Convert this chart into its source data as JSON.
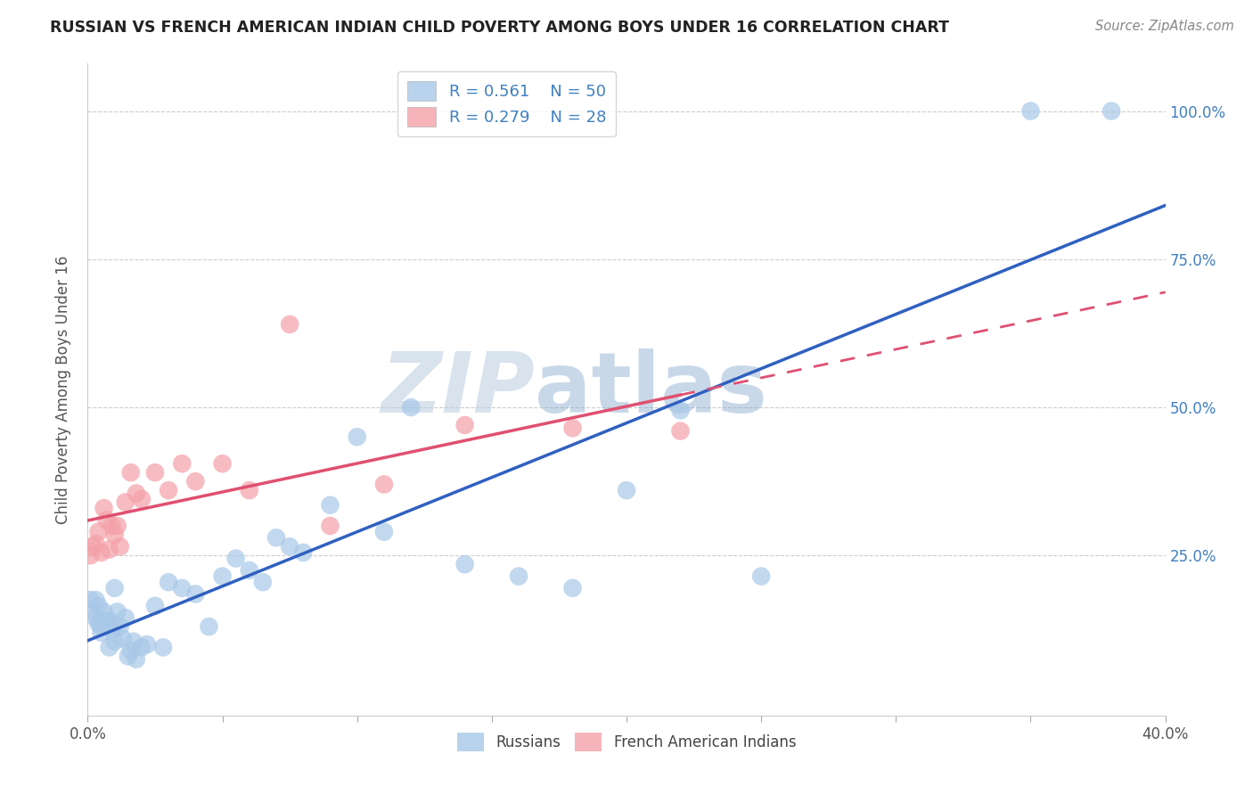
{
  "title": "RUSSIAN VS FRENCH AMERICAN INDIAN CHILD POVERTY AMONG BOYS UNDER 16 CORRELATION CHART",
  "source": "Source: ZipAtlas.com",
  "ylabel": "Child Poverty Among Boys Under 16",
  "xlim": [
    0.0,
    0.4
  ],
  "ylim": [
    -0.02,
    1.08
  ],
  "russians_R": "0.561",
  "russians_N": "50",
  "french_R": "0.279",
  "french_N": "28",
  "blue_scatter_color": "#a8c8e8",
  "pink_scatter_color": "#f4a0a8",
  "blue_line_color": "#3060c0",
  "pink_line_color": "#e05070",
  "watermark_color": "#d0e4f0",
  "title_color": "#222222",
  "source_color": "#888888",
  "ylabel_color": "#555555",
  "tick_color": "#555555",
  "right_tick_color": "#4080c0",
  "grid_color": "#cccccc",
  "legend_border_color": "#cccccc",
  "russians_x": [
    0.001,
    0.002,
    0.003,
    0.003,
    0.004,
    0.004,
    0.005,
    0.005,
    0.006,
    0.007,
    0.008,
    0.008,
    0.009,
    0.01,
    0.01,
    0.011,
    0.012,
    0.013,
    0.014,
    0.015,
    0.016,
    0.017,
    0.018,
    0.02,
    0.022,
    0.025,
    0.028,
    0.03,
    0.035,
    0.04,
    0.045,
    0.05,
    0.055,
    0.06,
    0.065,
    0.07,
    0.075,
    0.08,
    0.09,
    0.1,
    0.11,
    0.12,
    0.14,
    0.16,
    0.18,
    0.2,
    0.22,
    0.25,
    0.35,
    0.38
  ],
  "russians_y": [
    0.175,
    0.155,
    0.145,
    0.175,
    0.135,
    0.165,
    0.13,
    0.12,
    0.155,
    0.14,
    0.095,
    0.14,
    0.125,
    0.105,
    0.195,
    0.155,
    0.13,
    0.11,
    0.145,
    0.08,
    0.09,
    0.105,
    0.075,
    0.095,
    0.1,
    0.165,
    0.095,
    0.205,
    0.195,
    0.185,
    0.13,
    0.215,
    0.245,
    0.225,
    0.205,
    0.28,
    0.265,
    0.255,
    0.335,
    0.45,
    0.29,
    0.5,
    0.235,
    0.215,
    0.195,
    0.36,
    0.495,
    0.215,
    1.0,
    1.0
  ],
  "french_x": [
    0.001,
    0.002,
    0.003,
    0.004,
    0.005,
    0.006,
    0.007,
    0.008,
    0.009,
    0.01,
    0.011,
    0.012,
    0.014,
    0.016,
    0.018,
    0.02,
    0.025,
    0.03,
    0.035,
    0.04,
    0.05,
    0.06,
    0.075,
    0.09,
    0.11,
    0.14,
    0.18,
    0.22
  ],
  "french_y": [
    0.25,
    0.265,
    0.27,
    0.29,
    0.255,
    0.33,
    0.31,
    0.26,
    0.3,
    0.285,
    0.3,
    0.265,
    0.34,
    0.39,
    0.355,
    0.345,
    0.39,
    0.36,
    0.405,
    0.375,
    0.405,
    0.36,
    0.64,
    0.3,
    0.37,
    0.47,
    0.465,
    0.46
  ]
}
